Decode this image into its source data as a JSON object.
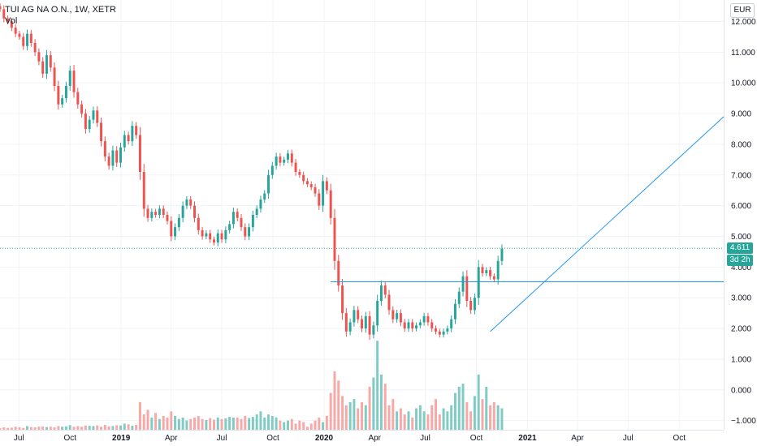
{
  "legend": {
    "symbol": "TUI AG NA O.N., 1W, XETR",
    "volume_label": "Vol"
  },
  "currency": "EUR",
  "colors": {
    "up": "#26a69a",
    "down": "#ef5350",
    "up_vol": "#80cbc4",
    "down_vol": "#f7a9a7",
    "trend": "#2196f3",
    "last_price": "#26a69a"
  },
  "price_tag": {
    "value": "4.611",
    "countdown": "3d 2h"
  },
  "chart_data": {
    "type": "candlestick",
    "title": "",
    "xlabel": "",
    "ylabel": "",
    "ylim": [
      -1.3,
      12.7
    ],
    "y_ticks": [
      "12.000",
      "11.000",
      "10.000",
      "9.000",
      "8.000",
      "7.000",
      "6.000",
      "5.000",
      "4.000",
      "3.000",
      "2.000",
      "1.000",
      "0.000",
      "−1.000"
    ],
    "y_tick_values": [
      12,
      11,
      10,
      9,
      8,
      7,
      6,
      5,
      4,
      3,
      2,
      1,
      0,
      -1
    ],
    "x_range": [
      "2018-05-28",
      "2021-12-20"
    ],
    "x_ticks": [
      {
        "date": "2018-07-01",
        "label": "Jul",
        "year": false
      },
      {
        "date": "2018-10-01",
        "label": "Oct",
        "year": false
      },
      {
        "date": "2019-01-01",
        "label": "2019",
        "year": true
      },
      {
        "date": "2019-04-01",
        "label": "Apr",
        "year": false
      },
      {
        "date": "2019-07-01",
        "label": "Jul",
        "year": false
      },
      {
        "date": "2019-10-01",
        "label": "Oct",
        "year": false
      },
      {
        "date": "2020-01-01",
        "label": "2020",
        "year": true
      },
      {
        "date": "2020-04-01",
        "label": "Apr",
        "year": false
      },
      {
        "date": "2020-07-01",
        "label": "Jul",
        "year": false
      },
      {
        "date": "2020-10-01",
        "label": "Oct",
        "year": false
      },
      {
        "date": "2021-01-01",
        "label": "2021",
        "year": true
      },
      {
        "date": "2021-04-01",
        "label": "Apr",
        "year": false
      },
      {
        "date": "2021-07-01",
        "label": "Jul",
        "year": false
      },
      {
        "date": "2021-10-01",
        "label": "Oct",
        "year": false
      }
    ],
    "first_week": "2018-05-28",
    "closes": [
      12.4,
      12.1,
      12.0,
      11.8,
      11.6,
      11.5,
      11.2,
      11.6,
      11.3,
      11.0,
      10.7,
      10.3,
      10.9,
      10.5,
      9.9,
      9.3,
      9.5,
      9.9,
      10.4,
      9.7,
      9.3,
      9.0,
      8.5,
      8.8,
      9.1,
      8.7,
      8.1,
      7.6,
      7.3,
      7.8,
      7.4,
      7.9,
      8.3,
      8.1,
      8.6,
      8.3,
      7.1,
      5.9,
      5.6,
      5.8,
      5.7,
      5.9,
      5.7,
      5.5,
      5.0,
      5.3,
      5.6,
      6.0,
      6.2,
      6.0,
      5.6,
      5.2,
      5.0,
      5.1,
      4.9,
      4.8,
      5.1,
      4.9,
      5.2,
      5.4,
      5.8,
      5.6,
      5.3,
      5.0,
      5.3,
      5.7,
      5.9,
      6.2,
      6.4,
      7.0,
      7.3,
      7.6,
      7.4,
      7.5,
      7.7,
      7.4,
      7.1,
      7.0,
      6.8,
      6.7,
      6.6,
      6.4,
      6.0,
      6.8,
      6.5,
      5.6,
      4.2,
      3.4,
      2.5,
      1.9,
      2.2,
      2.6,
      2.3,
      2.0,
      2.4,
      1.8,
      2.1,
      2.9,
      3.4,
      3.1,
      2.6,
      2.3,
      2.5,
      2.2,
      2.0,
      2.2,
      2.0,
      2.1,
      2.2,
      2.4,
      2.2,
      2.0,
      1.9,
      1.8,
      1.9,
      2.0,
      2.3,
      2.8,
      3.2,
      3.7,
      2.9,
      2.6,
      3.0,
      4.0,
      3.8,
      3.9,
      3.7,
      3.6,
      4.2,
      4.6
    ],
    "volumes": [
      -1.25,
      -1.22,
      -1.24,
      -1.23,
      -1.2,
      -1.22,
      -1.24,
      -1.18,
      -1.21,
      -1.22,
      -1.2,
      -1.19,
      -1.21,
      -1.2,
      -1.22,
      -1.18,
      -1.2,
      -1.19,
      -1.15,
      -1.2,
      -1.18,
      -1.2,
      -1.16,
      -1.17,
      -1.18,
      -1.16,
      -1.2,
      -1.14,
      -1.19,
      -1.18,
      -1.15,
      -1.16,
      -1.1,
      -1.12,
      -1.17,
      -1.14,
      -0.4,
      -0.8,
      -0.65,
      -0.9,
      -0.75,
      -0.95,
      -0.85,
      -0.9,
      -0.7,
      -0.85,
      -0.95,
      -0.9,
      -1.0,
      -0.95,
      -0.9,
      -0.85,
      -0.95,
      -0.98,
      -0.92,
      -0.97,
      -0.9,
      -0.95,
      -0.93,
      -0.88,
      -0.9,
      -0.9,
      -0.95,
      -0.85,
      -0.92,
      -0.88,
      -0.8,
      -0.7,
      -0.9,
      -0.8,
      -0.85,
      -0.9,
      -1.0,
      -1.05,
      -1.0,
      -0.95,
      -1.1,
      -1.0,
      -1.05,
      -1.2,
      -1.1,
      -1.0,
      -0.9,
      -1.05,
      -0.85,
      -0.1,
      0.6,
      0.3,
      -0.2,
      -0.5,
      -0.4,
      -0.3,
      -0.6,
      -0.4,
      -0.5,
      0.1,
      0.4,
      1.6,
      0.5,
      0.2,
      -0.5,
      -0.3,
      -0.7,
      -0.6,
      -0.8,
      -0.7,
      -0.9,
      -0.6,
      -0.5,
      -0.7,
      -0.8,
      -0.5,
      -0.3,
      -0.8,
      -0.6,
      -0.7,
      -0.5,
      -0.1,
      0.1,
      0.2,
      -0.4,
      -0.7,
      -0.2,
      0.5,
      -0.3,
      0.1,
      -0.5,
      -0.4,
      -0.5,
      -0.6
    ],
    "last_price": 4.611,
    "horizontal_line": 3.52,
    "trendline": {
      "start_date": "2020-10-26",
      "start_value": 1.9,
      "end_date": "2021-12-20",
      "end_value": 8.9
    }
  }
}
